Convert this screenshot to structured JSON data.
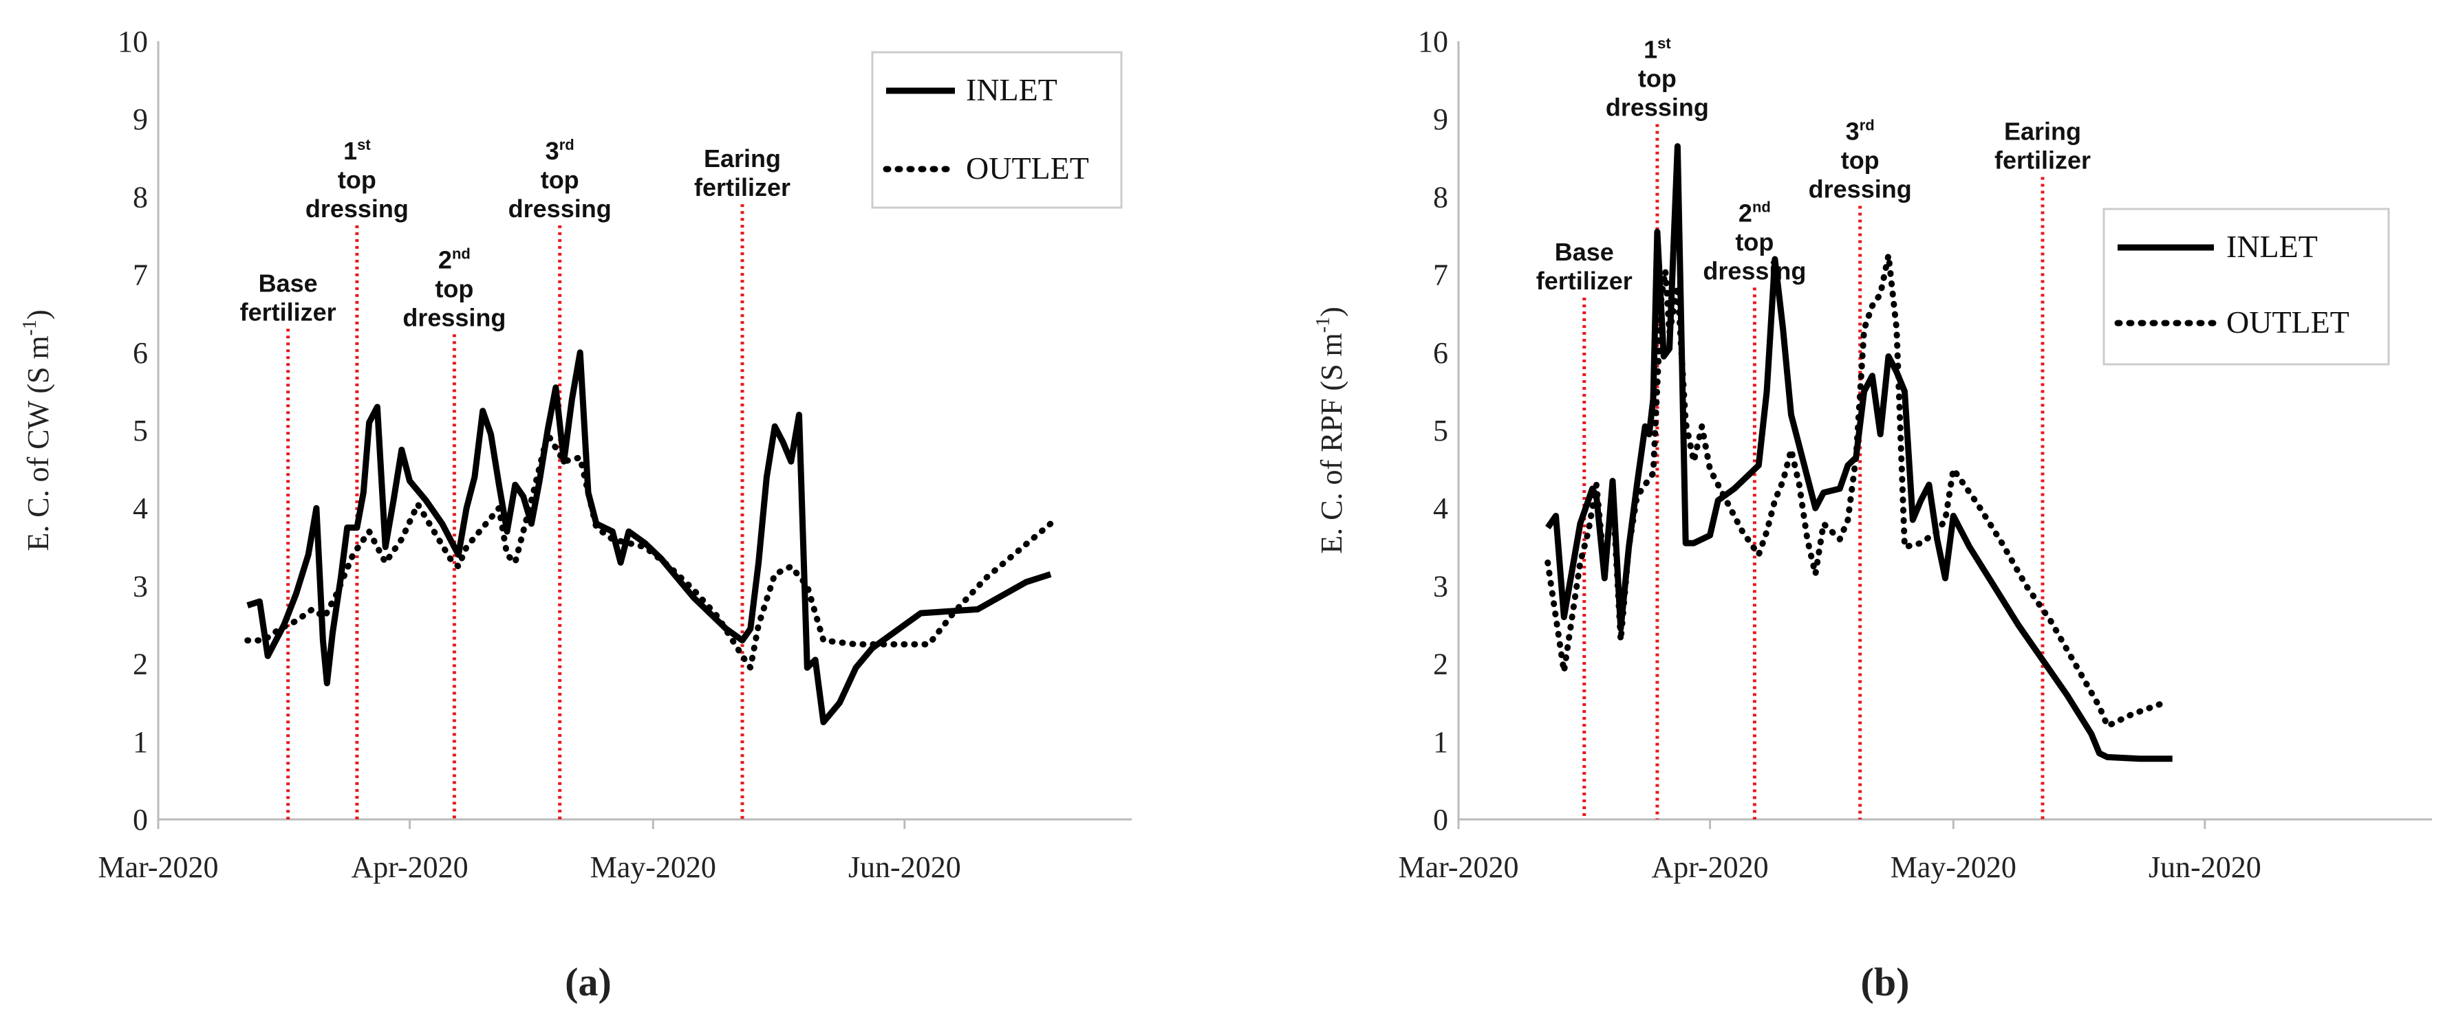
{
  "chart_data": [
    {
      "type": "line",
      "panel_label": "(a)",
      "ylabel": "E. C. of CW (S m",
      "ylabel_sup": "-1",
      "ylabel_close": ")",
      "xlabel": "",
      "ylim": [
        0,
        10
      ],
      "yticks": [
        0,
        1,
        2,
        3,
        4,
        5,
        6,
        7,
        8,
        9,
        10
      ],
      "xlim": [
        0,
        120
      ],
      "xticks": [
        {
          "label": "Mar-2020",
          "value": 0
        },
        {
          "label": "Apr-2020",
          "value": 31
        },
        {
          "label": "May-2020",
          "value": 61
        },
        {
          "label": "Jun-2020",
          "value": 92
        }
      ],
      "legend_position": "top-right",
      "events": [
        {
          "name": "base-fertilizer",
          "day": 16,
          "lines": [
            "Base",
            "fertilizer"
          ],
          "label_top": 2.9
        },
        {
          "name": "top-dressing-1",
          "day": 24.5,
          "lines": [
            "1^st",
            "top",
            "dressing"
          ],
          "label_top": 1.2
        },
        {
          "name": "top-dressing-2",
          "day": 36.5,
          "lines": [
            "2^nd",
            "top",
            "dressing"
          ],
          "label_top": 2.6
        },
        {
          "name": "top-dressing-3",
          "day": 49.5,
          "lines": [
            "3^rd",
            "top",
            "dressing"
          ],
          "label_top": 1.2
        },
        {
          "name": "earing-fertilizer",
          "day": 72,
          "lines": [
            "Earing",
            "fertilizer"
          ],
          "label_top": 1.3
        }
      ],
      "series": [
        {
          "name": "INLET",
          "style": "solid",
          "points": [
            [
              11,
              2.75
            ],
            [
              12.5,
              2.8
            ],
            [
              13.5,
              2.1
            ],
            [
              15.5,
              2.5
            ],
            [
              17,
              2.9
            ],
            [
              18.5,
              3.4
            ],
            [
              19.5,
              4.0
            ],
            [
              20.3,
              2.3
            ],
            [
              20.8,
              1.75
            ],
            [
              21.5,
              2.4
            ],
            [
              22.5,
              3.1
            ],
            [
              23.3,
              3.75
            ],
            [
              24.5,
              3.75
            ],
            [
              25.3,
              4.2
            ],
            [
              26,
              5.1
            ],
            [
              27,
              5.3
            ],
            [
              28,
              3.5
            ],
            [
              29,
              4.1
            ],
            [
              30,
              4.75
            ],
            [
              31,
              4.35
            ],
            [
              33,
              4.1
            ],
            [
              35,
              3.8
            ],
            [
              37,
              3.4
            ],
            [
              38,
              4.0
            ],
            [
              39,
              4.4
            ],
            [
              40,
              5.25
            ],
            [
              41,
              4.95
            ],
            [
              42,
              4.3
            ],
            [
              43,
              3.7
            ],
            [
              44,
              4.3
            ],
            [
              45,
              4.15
            ],
            [
              46,
              3.8
            ],
            [
              47,
              4.35
            ],
            [
              48,
              5.0
            ],
            [
              49,
              5.55
            ],
            [
              50,
              4.6
            ],
            [
              51,
              5.4
            ],
            [
              52,
              6.0
            ],
            [
              53,
              4.2
            ],
            [
              54,
              3.8
            ],
            [
              55,
              3.75
            ],
            [
              56,
              3.7
            ],
            [
              57,
              3.3
            ],
            [
              58,
              3.7
            ],
            [
              60,
              3.55
            ],
            [
              62,
              3.35
            ],
            [
              64,
              3.1
            ],
            [
              66,
              2.85
            ],
            [
              68,
              2.65
            ],
            [
              70,
              2.45
            ],
            [
              72,
              2.3
            ],
            [
              73,
              2.45
            ],
            [
              74,
              3.3
            ],
            [
              75,
              4.4
            ],
            [
              76,
              5.05
            ],
            [
              77,
              4.85
            ],
            [
              78,
              4.6
            ],
            [
              79,
              5.2
            ],
            [
              80,
              1.95
            ],
            [
              81,
              2.05
            ],
            [
              82,
              1.25
            ],
            [
              84,
              1.5
            ],
            [
              86,
              1.95
            ],
            [
              88,
              2.2
            ],
            [
              94,
              2.65
            ],
            [
              101,
              2.7
            ],
            [
              107,
              3.05
            ],
            [
              110,
              3.15
            ]
          ]
        },
        {
          "name": "OUTLET",
          "style": "dotted",
          "points": [
            [
              11,
              2.3
            ],
            [
              13,
              2.3
            ],
            [
              15,
              2.45
            ],
            [
              17,
              2.55
            ],
            [
              19,
              2.7
            ],
            [
              20.5,
              2.6
            ],
            [
              22,
              2.9
            ],
            [
              24,
              3.4
            ],
            [
              26,
              3.7
            ],
            [
              28,
              3.3
            ],
            [
              30,
              3.6
            ],
            [
              32,
              4.05
            ],
            [
              34,
              3.7
            ],
            [
              36,
              3.35
            ],
            [
              37,
              3.25
            ],
            [
              38,
              3.5
            ],
            [
              40,
              3.75
            ],
            [
              42,
              4.0
            ],
            [
              43,
              3.4
            ],
            [
              44,
              3.3
            ],
            [
              46,
              4.1
            ],
            [
              48,
              4.95
            ],
            [
              50,
              4.6
            ],
            [
              52,
              4.65
            ],
            [
              53,
              4.2
            ],
            [
              54,
              3.75
            ],
            [
              56,
              3.6
            ],
            [
              58,
              3.55
            ],
            [
              60,
              3.5
            ],
            [
              63,
              3.25
            ],
            [
              66,
              2.95
            ],
            [
              69,
              2.6
            ],
            [
              72,
              2.1
            ],
            [
              73,
              1.95
            ],
            [
              74,
              2.5
            ],
            [
              76,
              3.15
            ],
            [
              78,
              3.25
            ],
            [
              80,
              3.0
            ],
            [
              82,
              2.3
            ],
            [
              86,
              2.25
            ],
            [
              91,
              2.25
            ],
            [
              95,
              2.25
            ],
            [
              98,
              2.65
            ],
            [
              102,
              3.1
            ],
            [
              106,
              3.45
            ],
            [
              110,
              3.8
            ]
          ]
        }
      ]
    },
    {
      "type": "line",
      "panel_label": "(b)",
      "ylabel": "E. C. of RPF (S m",
      "ylabel_sup": "-1",
      "ylabel_close": ")",
      "xlabel": "",
      "ylim": [
        0,
        10
      ],
      "yticks": [
        0,
        1,
        2,
        3,
        4,
        5,
        6,
        7,
        8,
        9,
        10
      ],
      "xlim": [
        0,
        120
      ],
      "xticks": [
        {
          "label": "Mar-2020",
          "value": 0
        },
        {
          "label": "Apr-2020",
          "value": 31
        },
        {
          "label": "May-2020",
          "value": 61
        },
        {
          "label": "Jun-2020",
          "value": 92
        }
      ],
      "legend_position": "top-right",
      "events": [
        {
          "name": "base-fertilizer",
          "day": 15.5,
          "lines": [
            "Base",
            "fertilizer"
          ],
          "label_top": 2.5
        },
        {
          "name": "top-dressing-1",
          "day": 24.5,
          "lines": [
            "1^st",
            "top",
            "dressing"
          ],
          "label_top": -0.1
        },
        {
          "name": "top-dressing-2",
          "day": 36.5,
          "lines": [
            "2^nd",
            "top",
            "dressing"
          ],
          "label_top": 2.0
        },
        {
          "name": "top-dressing-3",
          "day": 49.5,
          "lines": [
            "3^rd",
            "top",
            "dressing"
          ],
          "label_top": 0.95
        },
        {
          "name": "earing-fertilizer",
          "day": 72,
          "lines": [
            "Earing",
            "fertilizer"
          ],
          "label_top": 0.95
        }
      ],
      "series": [
        {
          "name": "INLET",
          "style": "solid",
          "points": [
            [
              11,
              3.75
            ],
            [
              12,
              3.9
            ],
            [
              13,
              2.6
            ],
            [
              15,
              3.8
            ],
            [
              16.5,
              4.25
            ],
            [
              17,
              4.15
            ],
            [
              18,
              3.1
            ],
            [
              19,
              4.35
            ],
            [
              20,
              2.45
            ],
            [
              21,
              3.5
            ],
            [
              22,
              4.3
            ],
            [
              23,
              5.05
            ],
            [
              23.5,
              4.95
            ],
            [
              24,
              5.4
            ],
            [
              24.5,
              7.55
            ],
            [
              25.3,
              5.95
            ],
            [
              26,
              6.05
            ],
            [
              27,
              8.65
            ],
            [
              28,
              3.55
            ],
            [
              29,
              3.55
            ],
            [
              31,
              3.65
            ],
            [
              32,
              4.1
            ],
            [
              34,
              4.25
            ],
            [
              36,
              4.45
            ],
            [
              37,
              4.55
            ],
            [
              38,
              5.5
            ],
            [
              39,
              7.2
            ],
            [
              40,
              6.3
            ],
            [
              41,
              5.2
            ],
            [
              42,
              4.8
            ],
            [
              43,
              4.4
            ],
            [
              44,
              4.0
            ],
            [
              45,
              4.2
            ],
            [
              47,
              4.25
            ],
            [
              48,
              4.55
            ],
            [
              49,
              4.65
            ],
            [
              50,
              5.5
            ],
            [
              51,
              5.7
            ],
            [
              52,
              4.95
            ],
            [
              53,
              5.95
            ],
            [
              54,
              5.75
            ],
            [
              55,
              5.5
            ],
            [
              56,
              3.85
            ],
            [
              57,
              4.1
            ],
            [
              58,
              4.3
            ],
            [
              59,
              3.6
            ],
            [
              60,
              3.1
            ],
            [
              61,
              3.9
            ],
            [
              63,
              3.5
            ],
            [
              66,
              3.0
            ],
            [
              69,
              2.5
            ],
            [
              72,
              2.05
            ],
            [
              75,
              1.6
            ],
            [
              78,
              1.1
            ],
            [
              79,
              0.85
            ],
            [
              80,
              0.8
            ],
            [
              84,
              0.78
            ],
            [
              88,
              0.78
            ]
          ]
        },
        {
          "name": "OUTLET",
          "style": "dotted",
          "points": [
            [
              11,
              3.3
            ],
            [
              12,
              2.6
            ],
            [
              13,
              1.9
            ],
            [
              14,
              2.6
            ],
            [
              15,
              3.3
            ],
            [
              16,
              3.7
            ],
            [
              17,
              4.3
            ],
            [
              18,
              3.2
            ],
            [
              19,
              4.2
            ],
            [
              20,
              2.3
            ],
            [
              21,
              3.5
            ],
            [
              22,
              4.15
            ],
            [
              23,
              4.3
            ],
            [
              24,
              4.45
            ],
            [
              25,
              6.7
            ],
            [
              25.5,
              7.05
            ],
            [
              26,
              6.25
            ],
            [
              27,
              6.85
            ],
            [
              28,
              5.1
            ],
            [
              29,
              4.6
            ],
            [
              30,
              5.05
            ],
            [
              31,
              4.5
            ],
            [
              33,
              4.1
            ],
            [
              35,
              3.7
            ],
            [
              37,
              3.4
            ],
            [
              38,
              3.7
            ],
            [
              39,
              4.1
            ],
            [
              40,
              4.35
            ],
            [
              41,
              4.75
            ],
            [
              42,
              4.3
            ],
            [
              43,
              3.6
            ],
            [
              44,
              3.15
            ],
            [
              45,
              3.8
            ],
            [
              47,
              3.6
            ],
            [
              48,
              3.85
            ],
            [
              49,
              4.65
            ],
            [
              50,
              6.3
            ],
            [
              51,
              6.6
            ],
            [
              52,
              6.75
            ],
            [
              53,
              7.25
            ],
            [
              54,
              6.3
            ],
            [
              55,
              3.5
            ],
            [
              57,
              3.55
            ],
            [
              59,
              3.7
            ],
            [
              60,
              3.85
            ],
            [
              61,
              4.5
            ],
            [
              64,
              4.05
            ],
            [
              67,
              3.55
            ],
            [
              70,
              3.0
            ],
            [
              73,
              2.55
            ],
            [
              76,
              2.0
            ],
            [
              79,
              1.45
            ],
            [
              80,
              1.2
            ],
            [
              83,
              1.35
            ],
            [
              87,
              1.5
            ]
          ]
        }
      ]
    }
  ]
}
